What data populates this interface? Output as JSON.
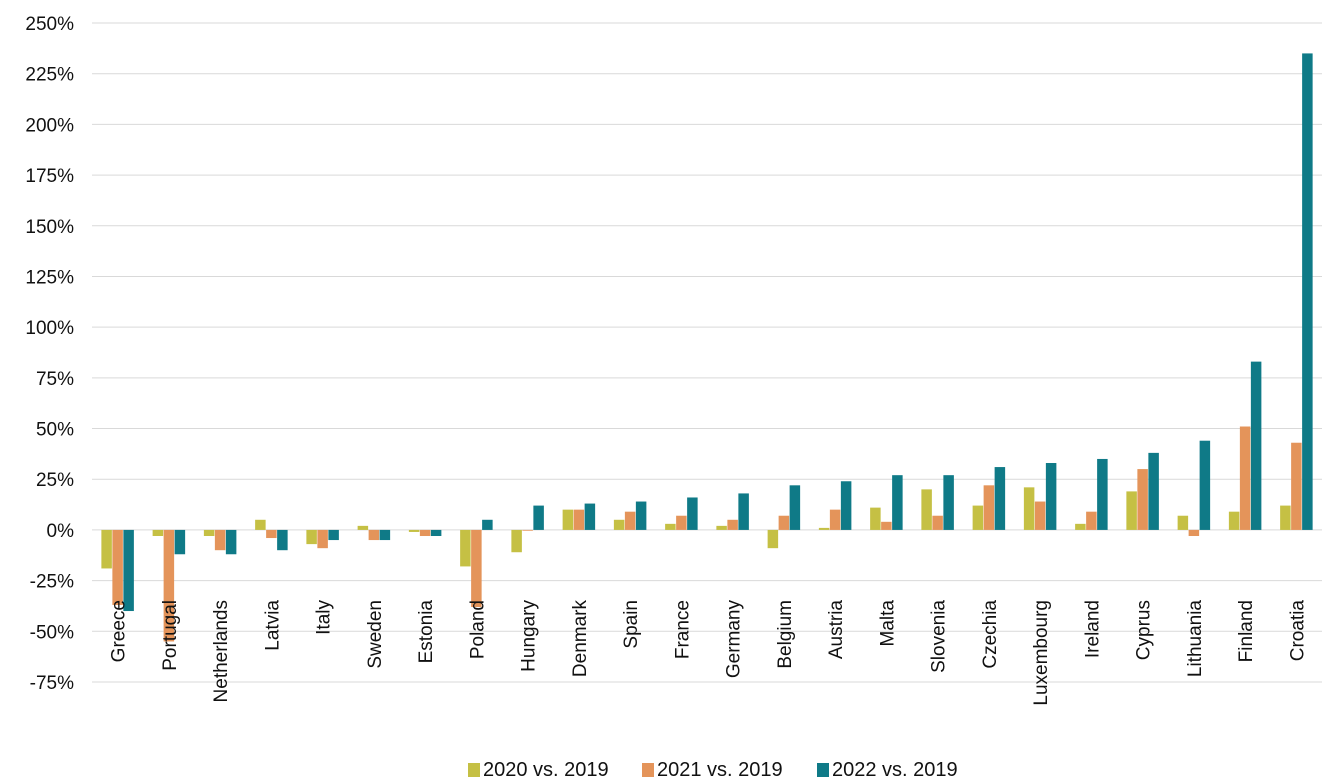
{
  "chart_data": {
    "type": "bar",
    "ylim": [
      -75,
      250
    ],
    "yticks": [
      250,
      225,
      200,
      175,
      150,
      125,
      100,
      75,
      50,
      25,
      0,
      -25,
      -50,
      -75
    ],
    "ytick_labels": [
      "250%",
      "225%",
      "200%",
      "175%",
      "150%",
      "125%",
      "100%",
      "75%",
      "50%",
      "25%",
      "0%",
      "-25%",
      "-50%",
      "-75%"
    ],
    "grid": true,
    "legend_position": "bottom",
    "categories": [
      "Greece",
      "Portugal",
      "Netherlands",
      "Latvia",
      "Italy",
      "Sweden",
      "Estonia",
      "Poland",
      "Hungary",
      "Denmark",
      "Spain",
      "France",
      "Germany",
      "Belgium",
      "Austria",
      "Malta",
      "Slovenia",
      "Czechia",
      "Luxembourg",
      "Ireland",
      "Cyprus",
      "Lithuania",
      "Finland",
      "Croatia"
    ],
    "series": [
      {
        "name": "2020 vs. 2019",
        "color": "#c5c044",
        "values": [
          -19,
          -3,
          -3,
          5,
          -7,
          2,
          -1,
          -18,
          -11,
          10,
          5,
          3,
          2,
          -9,
          1,
          11,
          20,
          12,
          21,
          3,
          19,
          7,
          9,
          12
        ]
      },
      {
        "name": "2021 vs. 2019",
        "color": "#e4945a",
        "values": [
          -37,
          -55,
          -10,
          -4,
          -9,
          -5,
          -3,
          -38,
          0,
          10,
          9,
          7,
          5,
          7,
          10,
          4,
          7,
          22,
          14,
          9,
          30,
          -3,
          51,
          43
        ]
      },
      {
        "name": "2022 vs. 2019",
        "color": "#0f7a87",
        "values": [
          -40,
          -12,
          -12,
          -10,
          -5,
          -5,
          -3,
          5,
          12,
          13,
          14,
          16,
          18,
          22,
          24,
          27,
          27,
          31,
          33,
          35,
          38,
          44,
          83,
          235
        ]
      }
    ]
  }
}
